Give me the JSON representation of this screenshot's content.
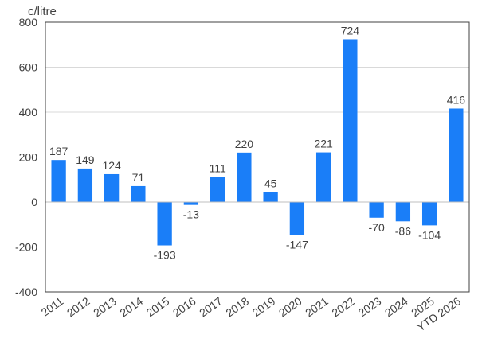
{
  "chart_data": {
    "type": "bar",
    "unit_label": "c/litre",
    "categories": [
      "2011",
      "2012",
      "2013",
      "2014",
      "2015",
      "2016",
      "2017",
      "2018",
      "2019",
      "2020",
      "2021",
      "2022",
      "2023",
      "2024",
      "2025",
      "YTD 2026"
    ],
    "values": [
      187,
      149,
      124,
      71,
      -193,
      -13,
      111,
      220,
      45,
      -147,
      221,
      724,
      -70,
      -86,
      -104,
      416
    ],
    "data_labels": [
      "187",
      "149",
      "124",
      "71",
      "-193",
      "-13",
      "111",
      "220",
      "45",
      "-147",
      "221",
      "724",
      "-70",
      "-86",
      "-104",
      "416"
    ],
    "ylim": [
      -400,
      800
    ],
    "yticks": [
      -400,
      -200,
      0,
      200,
      400,
      600,
      800
    ],
    "ytick_labels": [
      "-400",
      "-200",
      "0",
      "200",
      "400",
      "600",
      "800"
    ],
    "grid": true,
    "legend": "none",
    "colors": {
      "bar": "#1A7EF8",
      "grid": "#D9D9D9",
      "axis": "#404040",
      "text": "#404040"
    }
  }
}
